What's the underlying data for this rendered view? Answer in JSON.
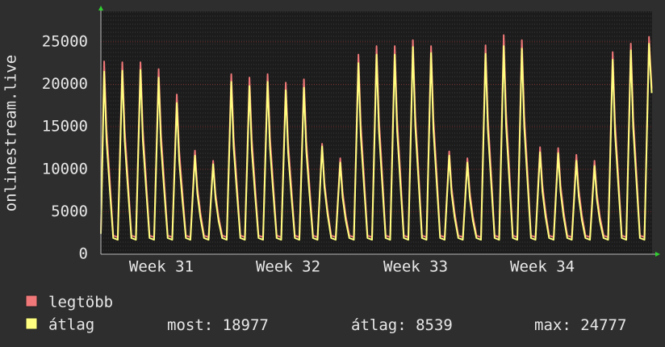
{
  "chart_data": {
    "type": "line",
    "ylabel": "onlinestream.live",
    "xlim": [
      0,
      30.35
    ],
    "xticks": [
      {
        "value": 3.33,
        "label": "Week 31"
      },
      {
        "value": 10.31,
        "label": "Week 32"
      },
      {
        "value": 17.33,
        "label": "Week 33"
      },
      {
        "value": 24.31,
        "label": "Week 34"
      }
    ],
    "ylim": [
      0,
      28600
    ],
    "yticks": [
      0,
      5000,
      10000,
      15000,
      20000,
      25000
    ],
    "grid": true,
    "x": [
      0,
      0.18,
      0.31,
      0.48,
      0.68,
      0.93,
      1.18,
      1.31,
      1.48,
      1.68,
      1.93,
      2.18,
      2.31,
      2.48,
      2.68,
      2.93,
      3.18,
      3.31,
      3.48,
      3.68,
      3.93,
      4.18,
      4.31,
      4.48,
      4.68,
      4.93,
      5.18,
      5.31,
      5.48,
      5.68,
      5.93,
      6.18,
      6.31,
      6.48,
      6.68,
      6.93,
      7.18,
      7.31,
      7.48,
      7.68,
      7.93,
      8.18,
      8.31,
      8.48,
      8.68,
      8.93,
      9.18,
      9.31,
      9.48,
      9.68,
      9.93,
      10.18,
      10.31,
      10.48,
      10.68,
      10.93,
      11.18,
      11.31,
      11.48,
      11.68,
      11.93,
      12.18,
      12.31,
      12.48,
      12.68,
      12.93,
      13.18,
      13.31,
      13.48,
      13.68,
      13.93,
      14.18,
      14.31,
      14.48,
      14.68,
      14.93,
      15.18,
      15.31,
      15.48,
      15.68,
      15.93,
      16.18,
      16.31,
      16.48,
      16.68,
      16.93,
      17.18,
      17.31,
      17.48,
      17.68,
      17.93,
      18.18,
      18.31,
      18.48,
      18.68,
      18.93,
      19.18,
      19.31,
      19.48,
      19.68,
      19.93,
      20.18,
      20.31,
      20.48,
      20.68,
      20.93,
      21.18,
      21.31,
      21.48,
      21.68,
      21.93,
      22.18,
      22.31,
      22.48,
      22.68,
      22.93,
      23.18,
      23.31,
      23.48,
      23.68,
      23.93,
      24.18,
      24.31,
      24.48,
      24.68,
      24.93,
      25.18,
      25.31,
      25.48,
      25.68,
      25.93,
      26.18,
      26.31,
      26.48,
      26.68,
      26.93,
      27.18,
      27.31,
      27.48,
      27.68,
      27.93,
      28.18,
      28.31,
      28.48,
      28.68,
      28.93,
      29.18,
      29.31,
      29.48,
      29.68,
      29.93,
      30.18,
      30.33
    ],
    "series": [
      {
        "name": "legtöbb",
        "color": "#f07878",
        "values": [
          2600,
          22700,
          14760,
          9080,
          2200,
          2000,
          22600,
          14690,
          9040,
          2200,
          2000,
          22600,
          14690,
          9040,
          2200,
          2000,
          21800,
          14170,
          8720,
          2200,
          2000,
          18800,
          12220,
          7520,
          2200,
          2000,
          12200,
          7930,
          4880,
          2200,
          2000,
          11000,
          7150,
          4400,
          2200,
          2000,
          21200,
          13780,
          8480,
          2200,
          2000,
          20800,
          13520,
          8320,
          2200,
          2000,
          21200,
          13780,
          8480,
          2200,
          2000,
          20200,
          13130,
          8080,
          2200,
          2000,
          20600,
          13390,
          8240,
          2200,
          2000,
          13000,
          8450,
          5200,
          2200,
          2000,
          11300,
          7350,
          4520,
          2200,
          2000,
          23500,
          15280,
          9400,
          2200,
          2000,
          24500,
          15930,
          9800,
          2200,
          2000,
          24500,
          15930,
          9800,
          2200,
          2000,
          25200,
          16380,
          10080,
          2200,
          2000,
          24500,
          15930,
          9800,
          2200,
          2000,
          12100,
          7870,
          4840,
          2200,
          2000,
          11300,
          7350,
          4520,
          2200,
          2000,
          24600,
          15990,
          9840,
          2200,
          2000,
          25800,
          16770,
          10320,
          2200,
          2000,
          25200,
          16380,
          10080,
          2200,
          2000,
          12600,
          8190,
          5040,
          2200,
          2000,
          12500,
          8130,
          5000,
          2200,
          2000,
          11700,
          7610,
          4680,
          2200,
          2000,
          11000,
          7150,
          4400,
          2200,
          2000,
          23800,
          15470,
          9520,
          2200,
          2000,
          24800,
          16120,
          9920,
          2200,
          2000,
          25600,
          19500
        ]
      },
      {
        "name": "átlag",
        "color": "#ffff80",
        "values": [
          2400,
          21500,
          13330,
          7960,
          1900,
          1700,
          21600,
          13390,
          7990,
          1900,
          1700,
          21700,
          13450,
          8030,
          1900,
          1700,
          20800,
          12900,
          7700,
          1900,
          1700,
          17800,
          11040,
          6590,
          1900,
          1700,
          11600,
          7190,
          4290,
          1900,
          1700,
          10600,
          6570,
          3920,
          1900,
          1700,
          20300,
          12590,
          7510,
          1900,
          1700,
          19800,
          12280,
          7330,
          1900,
          1700,
          20300,
          12590,
          7510,
          1900,
          1700,
          19300,
          11970,
          7140,
          1900,
          1700,
          19600,
          12150,
          7250,
          1900,
          1700,
          12700,
          7870,
          4700,
          1900,
          1700,
          10800,
          6700,
          4000,
          1900,
          1700,
          22500,
          13950,
          8330,
          1900,
          1700,
          23500,
          14570,
          8700,
          1900,
          1700,
          23500,
          14570,
          8700,
          1900,
          1700,
          24400,
          15130,
          9030,
          1900,
          1700,
          23700,
          14690,
          8770,
          1900,
          1700,
          11600,
          7190,
          4290,
          1900,
          1700,
          10800,
          6700,
          4000,
          1900,
          1700,
          23600,
          14630,
          8730,
          1900,
          1700,
          24500,
          15190,
          9070,
          1900,
          1700,
          24200,
          15000,
          8950,
          1900,
          1700,
          12000,
          7440,
          4440,
          1900,
          1700,
          11900,
          7380,
          4400,
          1900,
          1700,
          11000,
          6820,
          4070,
          1900,
          1700,
          10400,
          6450,
          3850,
          1900,
          1700,
          22900,
          14200,
          8470,
          1900,
          1700,
          24000,
          14880,
          8880,
          1900,
          1700,
          24777,
          18977
        ]
      }
    ],
    "stats": [
      {
        "label": "most:",
        "value": 18977
      },
      {
        "label": "átlag:",
        "value": 8539
      },
      {
        "label": "max:",
        "value": 24777
      }
    ]
  }
}
